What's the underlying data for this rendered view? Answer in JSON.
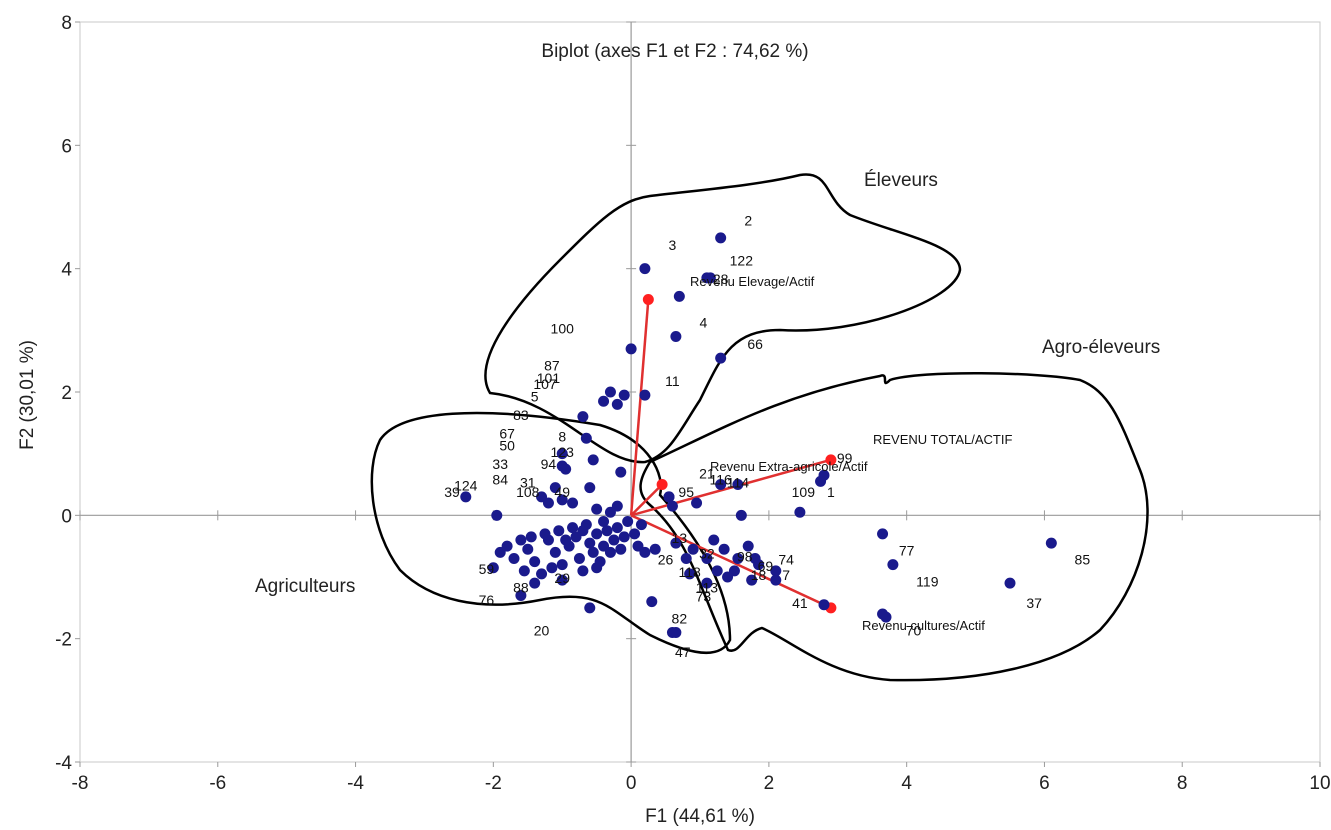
{
  "chart_data": {
    "type": "scatter",
    "title": "Biplot (axes F1 et F2 : 74,62 %)",
    "xlabel": "F1 (44,61 %)",
    "ylabel": "F2 (30,01 %)",
    "xlim": [
      -8,
      10
    ],
    "ylim": [
      -4,
      8
    ],
    "x_ticks": [
      "-8",
      "-6",
      "-4",
      "-2",
      "0",
      "2",
      "4",
      "6",
      "8",
      "10"
    ],
    "y_ticks": [
      "-4",
      "-2",
      "0",
      "2",
      "4",
      "6",
      "8"
    ],
    "grid": false,
    "colors": {
      "observations": "#1a1a8c",
      "variables": "#ff2020",
      "vectors": "#e03030",
      "outline": "#000000"
    },
    "groups": [
      {
        "name": "Éleveurs"
      },
      {
        "name": "Agro-éleveurs"
      },
      {
        "name": "Agriculteurs"
      }
    ],
    "variables": [
      {
        "name": "Revenu Elevage/Actif",
        "x": 0.25,
        "y": 3.5
      },
      {
        "name": "REVENU TOTAL/ACTIF",
        "x": 2.9,
        "y": 0.9
      },
      {
        "name": "Revenu Extra-agricole/Actif",
        "x": 0.45,
        "y": 0.5
      },
      {
        "name": "Revenu cultures/Actif",
        "x": 2.9,
        "y": -1.5
      }
    ],
    "observations": [
      {
        "label": "2",
        "x": 1.3,
        "y": 4.5,
        "lx": 1.7,
        "ly": 4.7
      },
      {
        "label": "3",
        "x": 0.2,
        "y": 4.0,
        "lx": 0.6,
        "ly": 4.3
      },
      {
        "label": "122",
        "x": 1.1,
        "y": 3.85,
        "lx": 1.6,
        "ly": 4.05
      },
      {
        "label": "28",
        "x": 1.15,
        "y": 3.85,
        "lx": 1.3,
        "ly": 3.75
      },
      {
        "label": "",
        "x": 0.7,
        "y": 3.55
      },
      {
        "label": "4",
        "x": 0.65,
        "y": 2.9,
        "lx": 1.05,
        "ly": 3.05
      },
      {
        "label": "66",
        "x": 1.3,
        "y": 2.55,
        "lx": 1.8,
        "ly": 2.7
      },
      {
        "label": "100",
        "x": 0.0,
        "y": 2.7,
        "lx": -1.0,
        "ly": 2.95
      },
      {
        "label": "11",
        "x": 0.2,
        "y": 1.95,
        "lx": 0.6,
        "ly": 2.1
      },
      {
        "label": "87",
        "x": -0.3,
        "y": 2.0,
        "lx": -1.15,
        "ly": 2.35
      },
      {
        "label": "101",
        "x": -0.4,
        "y": 1.85,
        "lx": -1.2,
        "ly": 2.15
      },
      {
        "label": "107",
        "x": -0.2,
        "y": 1.8,
        "lx": -1.25,
        "ly": 2.05
      },
      {
        "label": "",
        "x": -0.1,
        "y": 1.95
      },
      {
        "label": "5",
        "x": -0.7,
        "y": 1.6,
        "lx": -1.4,
        "ly": 1.85
      },
      {
        "label": "83",
        "x": -0.65,
        "y": 1.25,
        "lx": -1.6,
        "ly": 1.55
      },
      {
        "label": "67",
        "x": -1.0,
        "y": 1.0,
        "lx": -1.8,
        "ly": 1.25
      },
      {
        "label": "8",
        "x": -0.55,
        "y": 0.9,
        "lx": -1.0,
        "ly": 1.2
      },
      {
        "label": "50",
        "x": -1.0,
        "y": 0.8,
        "lx": -1.8,
        "ly": 1.05
      },
      {
        "label": "123",
        "x": -0.95,
        "y": 0.75,
        "lx": -1.0,
        "ly": 0.95
      },
      {
        "label": "94",
        "x": -0.15,
        "y": 0.7,
        "lx": -1.2,
        "ly": 0.75
      },
      {
        "label": "33",
        "x": -1.1,
        "y": 0.45,
        "lx": -1.9,
        "ly": 0.75
      },
      {
        "label": "84",
        "x": -1.3,
        "y": 0.3,
        "lx": -1.9,
        "ly": 0.5
      },
      {
        "label": "124",
        "x": -1.95,
        "y": 0.0,
        "lx": -2.4,
        "ly": 0.4
      },
      {
        "label": "31",
        "x": -1.2,
        "y": 0.2,
        "lx": -1.5,
        "ly": 0.45
      },
      {
        "label": "39",
        "x": -2.4,
        "y": 0.3,
        "lx": -2.6,
        "ly": 0.3
      },
      {
        "label": "108",
        "x": -1.0,
        "y": 0.25,
        "lx": -1.5,
        "ly": 0.3
      },
      {
        "label": "49",
        "x": -0.85,
        "y": 0.2,
        "lx": -1.0,
        "ly": 0.3
      },
      {
        "label": "99",
        "x": 2.8,
        "y": 0.65,
        "lx": 3.1,
        "ly": 0.85
      },
      {
        "label": "21",
        "x": 0.55,
        "y": 0.3,
        "lx": 1.1,
        "ly": 0.6
      },
      {
        "label": "116",
        "x": 1.3,
        "y": 0.5,
        "lx": 1.3,
        "ly": 0.5
      },
      {
        "label": "114",
        "x": 1.55,
        "y": 0.5,
        "lx": 1.55,
        "ly": 0.45
      },
      {
        "label": "95",
        "x": 0.55,
        "y": 0.3,
        "lx": 0.8,
        "ly": 0.3
      },
      {
        "label": "109",
        "x": 2.45,
        "y": 0.05,
        "lx": 2.5,
        "ly": 0.3
      },
      {
        "label": "1",
        "x": 2.75,
        "y": 0.55,
        "lx": 2.9,
        "ly": 0.3
      },
      {
        "label": "",
        "x": 0.95,
        "y": 0.2
      },
      {
        "label": "",
        "x": 1.6,
        "y": 0.0
      },
      {
        "label": "",
        "x": 0.6,
        "y": 0.15
      },
      {
        "label": "13",
        "x": 0.65,
        "y": -0.45,
        "lx": 0.7,
        "ly": -0.45
      },
      {
        "label": "26",
        "x": 0.8,
        "y": -0.7,
        "lx": 0.5,
        "ly": -0.8
      },
      {
        "label": "32",
        "x": 1.1,
        "y": -0.7,
        "lx": 1.1,
        "ly": -0.7
      },
      {
        "label": "118",
        "x": 0.85,
        "y": -0.95,
        "lx": 0.85,
        "ly": -1.0
      },
      {
        "label": "113",
        "x": 1.25,
        "y": -0.9,
        "lx": 1.1,
        "ly": -1.25
      },
      {
        "label": "73",
        "x": 1.1,
        "y": -1.1,
        "lx": 1.05,
        "ly": -1.4
      },
      {
        "label": "98",
        "x": 1.8,
        "y": -0.7,
        "lx": 1.65,
        "ly": -0.75
      },
      {
        "label": "69",
        "x": 1.85,
        "y": -0.8,
        "lx": 1.95,
        "ly": -0.9
      },
      {
        "label": "74",
        "x": 2.1,
        "y": -0.9,
        "lx": 2.25,
        "ly": -0.8
      },
      {
        "label": "7",
        "x": 2.1,
        "y": -1.05,
        "lx": 2.25,
        "ly": -1.05
      },
      {
        "label": "18",
        "x": 1.75,
        "y": -1.05,
        "lx": 1.85,
        "ly": -1.05
      },
      {
        "label": "41",
        "x": 2.8,
        "y": -1.45,
        "lx": 2.45,
        "ly": -1.5
      },
      {
        "label": "",
        "x": 1.35,
        "y": -0.55
      },
      {
        "label": "",
        "x": 1.55,
        "y": -0.7
      },
      {
        "label": "",
        "x": 1.5,
        "y": -0.9
      },
      {
        "label": "",
        "x": 1.7,
        "y": -0.5
      },
      {
        "label": "",
        "x": 1.2,
        "y": -0.4
      },
      {
        "label": "",
        "x": 0.9,
        "y": -0.55
      },
      {
        "label": "",
        "x": 1.4,
        "y": -1.0
      },
      {
        "label": "77",
        "x": 3.8,
        "y": -0.8,
        "lx": 4.0,
        "ly": -0.65
      },
      {
        "label": "",
        "x": 3.65,
        "y": -0.3
      },
      {
        "label": "119",
        "x": 3.7,
        "y": -1.65,
        "lx": 4.3,
        "ly": -1.15
      },
      {
        "label": "70",
        "x": 3.65,
        "y": -1.6,
        "lx": 4.1,
        "ly": -1.95
      },
      {
        "label": "85",
        "x": 6.1,
        "y": -0.45,
        "lx": 6.55,
        "ly": -0.8
      },
      {
        "label": "37",
        "x": 5.5,
        "y": -1.1,
        "lx": 5.85,
        "ly": -1.5
      },
      {
        "label": "82",
        "x": 0.65,
        "y": -1.9,
        "lx": 0.7,
        "ly": -1.75
      },
      {
        "label": "47",
        "x": 0.6,
        "y": -1.9,
        "lx": 0.75,
        "ly": -2.3
      },
      {
        "label": "",
        "x": 0.3,
        "y": -1.4
      },
      {
        "label": "20",
        "x": -0.6,
        "y": -1.5,
        "lx": -1.3,
        "ly": -1.95
      },
      {
        "label": "76",
        "x": -1.6,
        "y": -1.3,
        "lx": -2.1,
        "ly": -1.45
      },
      {
        "label": "88",
        "x": -1.4,
        "y": -1.1,
        "lx": -1.6,
        "ly": -1.25
      },
      {
        "label": "29",
        "x": -1.0,
        "y": -1.05,
        "lx": -1.0,
        "ly": -1.1
      },
      {
        "label": "59",
        "x": -2.0,
        "y": -0.85,
        "lx": -2.1,
        "ly": -0.95
      },
      {
        "label": "",
        "x": -1.9,
        "y": -0.6
      },
      {
        "label": "",
        "x": -1.7,
        "y": -0.7
      },
      {
        "label": "",
        "x": -1.5,
        "y": -0.55
      },
      {
        "label": "",
        "x": -1.4,
        "y": -0.75
      },
      {
        "label": "",
        "x": -1.3,
        "y": -0.95
      },
      {
        "label": "",
        "x": -1.2,
        "y": -0.4
      },
      {
        "label": "",
        "x": -1.1,
        "y": -0.6
      },
      {
        "label": "",
        "x": -1.0,
        "y": -0.8
      },
      {
        "label": "",
        "x": -0.9,
        "y": -0.5
      },
      {
        "label": "",
        "x": -0.8,
        "y": -0.35
      },
      {
        "label": "",
        "x": -0.75,
        "y": -0.7
      },
      {
        "label": "",
        "x": -0.7,
        "y": -0.9
      },
      {
        "label": "",
        "x": -0.6,
        "y": -0.45
      },
      {
        "label": "",
        "x": -0.55,
        "y": -0.6
      },
      {
        "label": "",
        "x": -0.5,
        "y": -0.3
      },
      {
        "label": "",
        "x": -0.45,
        "y": -0.75
      },
      {
        "label": "",
        "x": -0.4,
        "y": -0.5
      },
      {
        "label": "",
        "x": -0.35,
        "y": -0.25
      },
      {
        "label": "",
        "x": -0.3,
        "y": -0.6
      },
      {
        "label": "",
        "x": -0.25,
        "y": -0.4
      },
      {
        "label": "",
        "x": -0.2,
        "y": -0.2
      },
      {
        "label": "",
        "x": -0.15,
        "y": -0.55
      },
      {
        "label": "",
        "x": -0.1,
        "y": -0.35
      },
      {
        "label": "",
        "x": -0.05,
        "y": -0.1
      },
      {
        "label": "",
        "x": 0.05,
        "y": -0.3
      },
      {
        "label": "",
        "x": 0.1,
        "y": -0.5
      },
      {
        "label": "",
        "x": 0.2,
        "y": -0.6
      },
      {
        "label": "",
        "x": 0.35,
        "y": -0.55
      },
      {
        "label": "",
        "x": 0.15,
        "y": -0.15
      },
      {
        "label": "",
        "x": -0.6,
        "y": 0.45
      },
      {
        "label": "",
        "x": -0.5,
        "y": 0.1
      },
      {
        "label": "",
        "x": -0.3,
        "y": 0.05
      },
      {
        "label": "",
        "x": -0.2,
        "y": 0.15
      },
      {
        "label": "",
        "x": -0.4,
        "y": -0.1
      },
      {
        "label": "",
        "x": -0.65,
        "y": -0.15
      },
      {
        "label": "",
        "x": -0.85,
        "y": -0.2
      },
      {
        "label": "",
        "x": -1.05,
        "y": -0.25
      },
      {
        "label": "",
        "x": -1.25,
        "y": -0.3
      },
      {
        "label": "",
        "x": -1.45,
        "y": -0.35
      },
      {
        "label": "",
        "x": -1.6,
        "y": -0.4
      },
      {
        "label": "",
        "x": -1.8,
        "y": -0.5
      },
      {
        "label": "",
        "x": -0.95,
        "y": -0.4
      },
      {
        "label": "",
        "x": -0.7,
        "y": -0.25
      },
      {
        "label": "",
        "x": -0.5,
        "y": -0.85
      },
      {
        "label": "",
        "x": -1.15,
        "y": -0.85
      },
      {
        "label": "",
        "x": -1.55,
        "y": -0.9
      }
    ]
  }
}
